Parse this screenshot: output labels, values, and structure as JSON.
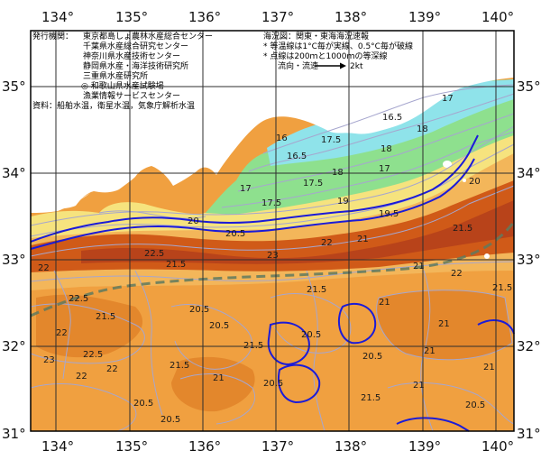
{
  "map": {
    "lon_labels": [
      "134°",
      "135°",
      "136°",
      "137°",
      "138°",
      "139°",
      "140°"
    ],
    "lat_labels": [
      "35°",
      "34°",
      "33°",
      "32°",
      "31°"
    ],
    "publisher": {
      "heading": "発行機関：",
      "agencies": [
        "東京都島しょ農林水産総合センター",
        "千葉県水産総合研究センター",
        "神奈川県水産技術センター",
        "静岡県水産・海洋技術研究所",
        "三重県水産研究所",
        "◎ 和歌山県水産試験場",
        "漁業情報サービスセンター"
      ],
      "data_source": "資料：船舶水温，衛星水温，気象庁解析水温"
    },
    "info": {
      "sea_area": "海況図：関東・東海海況速報",
      "notes": [
        "* 等温線は1°C毎が実線、0.5°C毎が破線",
        "* 点線は200ｍと1000ｍの等深線"
      ],
      "flow_label": "流向・流速",
      "flow_scale": "2kt"
    },
    "isotherm_labels": [
      "16.5",
      "17",
      "17.5",
      "18",
      "16",
      "16.5",
      "17.5",
      "18",
      "17",
      "17.5",
      "17",
      "18",
      "19",
      "19.5",
      "20",
      "20.5",
      "21",
      "21.5",
      "22",
      "22.5",
      "23",
      "22",
      "21.5",
      "22.5",
      "21.5",
      "21",
      "20.5",
      "21",
      "21.5",
      "20.5",
      "21",
      "20.5",
      "22",
      "21",
      "21.5",
      "20.5",
      "21.5",
      "22",
      "21",
      "20.5",
      "23",
      "22",
      "22.5",
      "21.5",
      "20.5",
      "21",
      "20.5",
      "22",
      "21.5",
      "20.5",
      "21",
      "20"
    ],
    "palette": {
      "land": "#ffffff",
      "sea_warm": "#f0a040",
      "sea_hot": "#d05a18",
      "sea_hotter": "#b8431a",
      "sea_mid": "#f3b65a",
      "sea_cool_yellow": "#f6e37e",
      "sea_green": "#8ee08e",
      "sea_cyan": "#8fe3ea",
      "isotherm": "#a6a6ce",
      "depth_line": "#1b1bd8",
      "kuroshio_axis": "#5f7a5f",
      "grid": "#2e2e2e"
    }
  }
}
